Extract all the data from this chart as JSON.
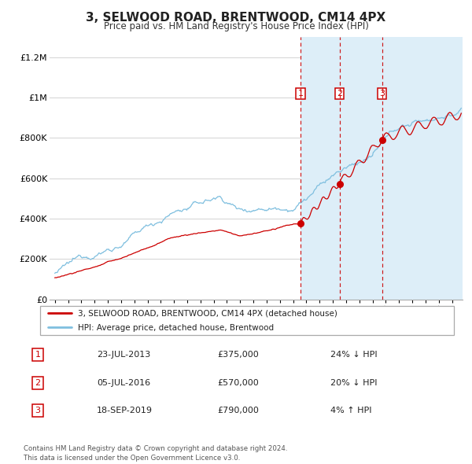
{
  "title": "3, SELWOOD ROAD, BRENTWOOD, CM14 4PX",
  "subtitle": "Price paid vs. HM Land Registry's House Price Index (HPI)",
  "sale_dates": [
    "23-JUL-2013",
    "05-JUL-2016",
    "18-SEP-2019"
  ],
  "sale_prices": [
    375000,
    570000,
    790000
  ],
  "sale_hpi_diff": [
    "24% ↓ HPI",
    "20% ↓ HPI",
    "4% ↑ HPI"
  ],
  "sale_years": [
    2013.55,
    2016.51,
    2019.72
  ],
  "legend_line1": "3, SELWOOD ROAD, BRENTWOOD, CM14 4PX (detached house)",
  "legend_line2": "HPI: Average price, detached house, Brentwood",
  "footer": "Contains HM Land Registry data © Crown copyright and database right 2024.\nThis data is licensed under the Open Government Licence v3.0.",
  "hpi_color": "#7fbfdf",
  "price_color": "#cc0000",
  "shade_color": "#ddeef8",
  "ylim": [
    0,
    1300000
  ],
  "yticks": [
    0,
    200000,
    400000,
    600000,
    800000,
    1000000,
    1200000
  ],
  "ytick_labels": [
    "£0",
    "£200K",
    "£400K",
    "£600K",
    "£800K",
    "£1M",
    "£1.2M"
  ],
  "xmin": 1994.6,
  "xmax": 2025.8
}
